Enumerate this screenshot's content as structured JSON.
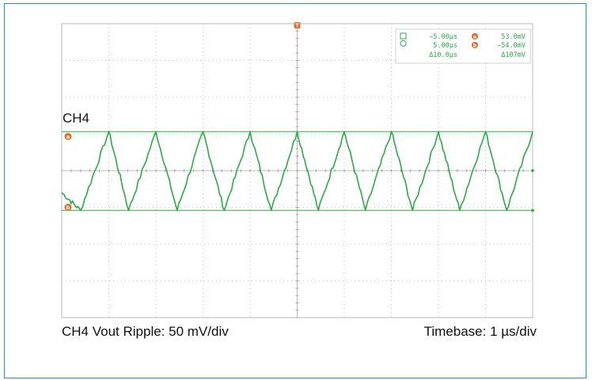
{
  "figure": {
    "frame_color": "#2a8fc9",
    "trace_color": "#2fa84a",
    "grid_color": "#b9b9b9",
    "marker_color": "#e06a2a"
  },
  "channel_label": "CH4",
  "caption_left": "CH4 Vout Ripple: 50 mV/div",
  "caption_right": "Timebase: 1 µs/div",
  "trigger_marker": "T",
  "cursors": {
    "a_label": "a",
    "b_label": "b",
    "t1": "−5.00µs",
    "t2": "5.00µs",
    "dt": "Δ10.0µs",
    "v_a": "53.0mV",
    "v_b": "−54.0mV",
    "dv": "Δ107mV"
  },
  "chart_data": {
    "type": "line",
    "title": "",
    "xlabel": "",
    "ylabel": "",
    "x_divisions": 10,
    "y_divisions": 8,
    "x_units_per_div": 1,
    "y_units_per_div": 50,
    "xlim": [
      -5,
      5
    ],
    "ylim": [
      -200,
      200
    ],
    "grid": true,
    "series": [
      {
        "x": [
          -5.0,
          -4.6,
          -4.0,
          -3.58,
          -3.0,
          -2.55,
          -2.0,
          -1.55,
          -1.0,
          -0.55,
          0.0,
          0.45,
          1.0,
          1.45,
          2.0,
          2.45,
          3.0,
          3.45,
          4.0,
          4.45,
          5.0
        ],
        "y": [
          -30,
          -54,
          53,
          -54,
          53,
          -54,
          53,
          -54,
          53,
          -54,
          53,
          -54,
          53,
          -54,
          53,
          -54,
          53,
          -54,
          53,
          -54,
          53
        ]
      }
    ],
    "cursor_levels": {
      "a": 53,
      "b": -54
    }
  }
}
